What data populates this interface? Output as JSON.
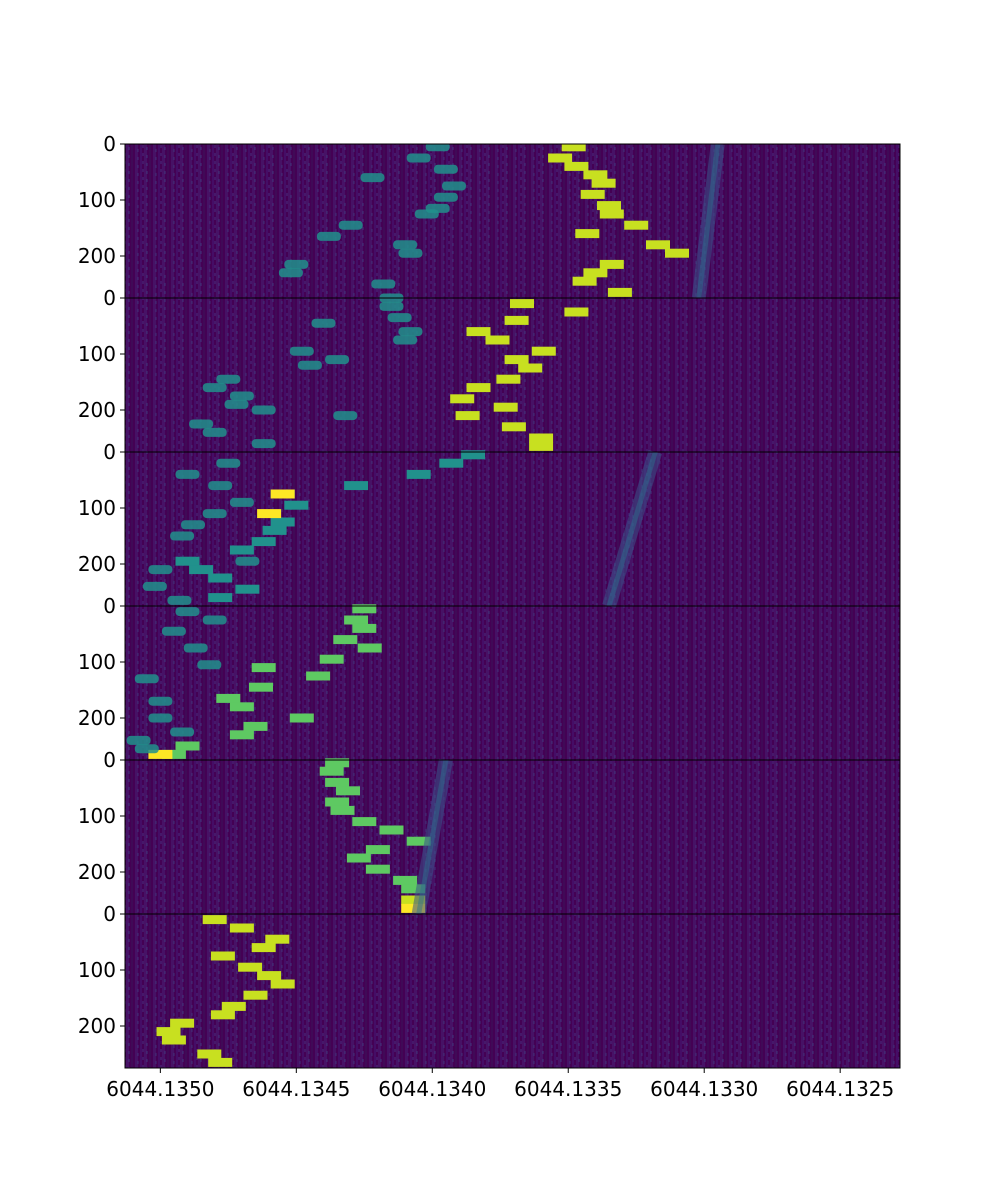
{
  "chart_data": {
    "type": "heatmap",
    "title": "",
    "xlabel": "",
    "ylabel": "",
    "x_axis": {
      "ticks": [
        6044.135,
        6044.1345,
        6044.134,
        6044.1335,
        6044.133,
        6044.1325
      ],
      "tick_labels": [
        "6044.1350",
        "6044.1345",
        "6044.1340",
        "6044.1335",
        "6044.1330",
        "6044.1325"
      ],
      "xlim": [
        6044.13513,
        6044.13228
      ],
      "inverted": true
    },
    "y_axis": {
      "ticks": [
        0,
        100,
        200
      ],
      "tick_labels": [
        "0",
        "100",
        "200"
      ],
      "ylim": [
        0,
        275
      ],
      "inverted": true
    },
    "colormap": "viridis",
    "colors": {
      "background": "#440154",
      "low": "#46327e",
      "mid": "#21918c",
      "high": "#5ec962",
      "peak": "#c8e020",
      "max": "#fde725"
    },
    "panels": [
      {
        "name": "panel 1",
        "blocks": [
          {
            "x": 6044.13348,
            "y": 5,
            "level": 0.9
          },
          {
            "x": 6044.13353,
            "y": 25,
            "level": 0.9
          },
          {
            "x": 6044.13347,
            "y": 40,
            "level": 0.9
          },
          {
            "x": 6044.1334,
            "y": 55,
            "level": 0.9
          },
          {
            "x": 6044.13337,
            "y": 70,
            "level": 0.9
          },
          {
            "x": 6044.13341,
            "y": 90,
            "level": 0.9
          },
          {
            "x": 6044.13335,
            "y": 110,
            "level": 0.9
          },
          {
            "x": 6044.13334,
            "y": 125,
            "level": 0.9
          },
          {
            "x": 6044.13325,
            "y": 145,
            "level": 0.9
          },
          {
            "x": 6044.13343,
            "y": 160,
            "level": 0.9
          },
          {
            "x": 6044.13317,
            "y": 180,
            "level": 0.9
          },
          {
            "x": 6044.1331,
            "y": 195,
            "level": 0.9
          },
          {
            "x": 6044.13334,
            "y": 215,
            "level": 0.9
          },
          {
            "x": 6044.1334,
            "y": 230,
            "level": 0.9
          },
          {
            "x": 6044.13344,
            "y": 245,
            "level": 0.9
          },
          {
            "x": 6044.13331,
            "y": 265,
            "level": 0.9
          },
          {
            "x": 6044.13398,
            "y": 5,
            "level": 0.55
          },
          {
            "x": 6044.13405,
            "y": 25,
            "level": 0.55
          },
          {
            "x": 6044.13395,
            "y": 45,
            "level": 0.55
          },
          {
            "x": 6044.13422,
            "y": 60,
            "level": 0.55
          },
          {
            "x": 6044.13392,
            "y": 75,
            "level": 0.55
          },
          {
            "x": 6044.13395,
            "y": 95,
            "level": 0.55
          },
          {
            "x": 6044.13398,
            "y": 115,
            "level": 0.55
          },
          {
            "x": 6044.13402,
            "y": 125,
            "level": 0.55
          },
          {
            "x": 6044.1343,
            "y": 145,
            "level": 0.55
          },
          {
            "x": 6044.13438,
            "y": 165,
            "level": 0.55
          },
          {
            "x": 6044.1341,
            "y": 180,
            "level": 0.55
          },
          {
            "x": 6044.13408,
            "y": 195,
            "level": 0.55
          },
          {
            "x": 6044.1345,
            "y": 215,
            "level": 0.55
          },
          {
            "x": 6044.13452,
            "y": 230,
            "level": 0.55
          },
          {
            "x": 6044.13418,
            "y": 250,
            "level": 0.55
          }
        ]
      },
      {
        "name": "panel 2",
        "blocks": [
          {
            "x": 6044.13367,
            "y": 10,
            "level": 0.9
          },
          {
            "x": 6044.13347,
            "y": 25,
            "level": 0.9
          },
          {
            "x": 6044.13369,
            "y": 40,
            "level": 0.9
          },
          {
            "x": 6044.13383,
            "y": 60,
            "level": 0.9
          },
          {
            "x": 6044.13376,
            "y": 75,
            "level": 0.9
          },
          {
            "x": 6044.13359,
            "y": 95,
            "level": 0.9
          },
          {
            "x": 6044.13369,
            "y": 110,
            "level": 0.9
          },
          {
            "x": 6044.13364,
            "y": 125,
            "level": 0.9
          },
          {
            "x": 6044.13372,
            "y": 145,
            "level": 0.9
          },
          {
            "x": 6044.13383,
            "y": 160,
            "level": 0.9
          },
          {
            "x": 6044.13389,
            "y": 180,
            "level": 0.9
          },
          {
            "x": 6044.13373,
            "y": 195,
            "level": 0.9
          },
          {
            "x": 6044.13387,
            "y": 210,
            "level": 0.9
          },
          {
            "x": 6044.1337,
            "y": 230,
            "level": 0.9
          },
          {
            "x": 6044.1336,
            "y": 250,
            "level": 0.95
          },
          {
            "x": 6044.1336,
            "y": 265,
            "level": 0.95
          },
          {
            "x": 6044.13415,
            "y": 0,
            "level": 0.55
          },
          {
            "x": 6044.13415,
            "y": 15,
            "level": 0.55
          },
          {
            "x": 6044.13412,
            "y": 35,
            "level": 0.55
          },
          {
            "x": 6044.1344,
            "y": 45,
            "level": 0.55
          },
          {
            "x": 6044.13408,
            "y": 60,
            "level": 0.55
          },
          {
            "x": 6044.1341,
            "y": 75,
            "level": 0.55
          },
          {
            "x": 6044.13448,
            "y": 95,
            "level": 0.55
          },
          {
            "x": 6044.13435,
            "y": 110,
            "level": 0.55
          },
          {
            "x": 6044.13445,
            "y": 120,
            "level": 0.55
          },
          {
            "x": 6044.13475,
            "y": 145,
            "level": 0.55
          },
          {
            "x": 6044.1348,
            "y": 160,
            "level": 0.55
          },
          {
            "x": 6044.1347,
            "y": 175,
            "level": 0.55
          },
          {
            "x": 6044.13472,
            "y": 190,
            "level": 0.55
          },
          {
            "x": 6044.13462,
            "y": 200,
            "level": 0.55
          },
          {
            "x": 6044.13432,
            "y": 210,
            "level": 0.55
          },
          {
            "x": 6044.13485,
            "y": 225,
            "level": 0.55
          },
          {
            "x": 6044.1348,
            "y": 240,
            "level": 0.55
          },
          {
            "x": 6044.13462,
            "y": 260,
            "level": 0.55
          }
        ]
      },
      {
        "name": "panel 3",
        "blocks": [
          {
            "x": 6044.13385,
            "y": 5,
            "level": 0.65
          },
          {
            "x": 6044.13393,
            "y": 20,
            "level": 0.65
          },
          {
            "x": 6044.13405,
            "y": 40,
            "level": 0.65
          },
          {
            "x": 6044.13428,
            "y": 60,
            "level": 0.65
          },
          {
            "x": 6044.13455,
            "y": 75,
            "level": 0.65
          },
          {
            "x": 6044.1345,
            "y": 95,
            "level": 0.65
          },
          {
            "x": 6044.13455,
            "y": 125,
            "level": 0.65
          },
          {
            "x": 6044.13458,
            "y": 140,
            "level": 0.65
          },
          {
            "x": 6044.13462,
            "y": 160,
            "level": 0.65
          },
          {
            "x": 6044.1347,
            "y": 175,
            "level": 0.65
          },
          {
            "x": 6044.1349,
            "y": 195,
            "level": 0.65
          },
          {
            "x": 6044.13485,
            "y": 210,
            "level": 0.65
          },
          {
            "x": 6044.13478,
            "y": 225,
            "level": 0.65
          },
          {
            "x": 6044.13468,
            "y": 245,
            "level": 0.65
          },
          {
            "x": 6044.13478,
            "y": 260,
            "level": 0.65
          },
          {
            "x": 6044.13455,
            "y": 75,
            "level": 1.0
          },
          {
            "x": 6044.1346,
            "y": 110,
            "level": 1.0
          },
          {
            "x": 6044.13475,
            "y": 20,
            "level": 0.5
          },
          {
            "x": 6044.1349,
            "y": 40,
            "level": 0.5
          },
          {
            "x": 6044.13478,
            "y": 60,
            "level": 0.5
          },
          {
            "x": 6044.1347,
            "y": 90,
            "level": 0.5
          },
          {
            "x": 6044.1348,
            "y": 110,
            "level": 0.5
          },
          {
            "x": 6044.13488,
            "y": 130,
            "level": 0.5
          },
          {
            "x": 6044.13492,
            "y": 150,
            "level": 0.5
          },
          {
            "x": 6044.13468,
            "y": 195,
            "level": 0.5
          },
          {
            "x": 6044.135,
            "y": 210,
            "level": 0.5
          },
          {
            "x": 6044.13502,
            "y": 240,
            "level": 0.5
          },
          {
            "x": 6044.13493,
            "y": 265,
            "level": 0.5
          }
        ]
      },
      {
        "name": "panel 4",
        "blocks": [
          {
            "x": 6044.13425,
            "y": 5,
            "level": 0.7
          },
          {
            "x": 6044.13428,
            "y": 25,
            "level": 0.7
          },
          {
            "x": 6044.13425,
            "y": 40,
            "level": 0.7
          },
          {
            "x": 6044.13432,
            "y": 60,
            "level": 0.7
          },
          {
            "x": 6044.13423,
            "y": 75,
            "level": 0.7
          },
          {
            "x": 6044.13437,
            "y": 95,
            "level": 0.7
          },
          {
            "x": 6044.13462,
            "y": 110,
            "level": 0.7
          },
          {
            "x": 6044.13442,
            "y": 125,
            "level": 0.7
          },
          {
            "x": 6044.13463,
            "y": 145,
            "level": 0.7
          },
          {
            "x": 6044.13475,
            "y": 165,
            "level": 0.7
          },
          {
            "x": 6044.1347,
            "y": 180,
            "level": 0.7
          },
          {
            "x": 6044.13448,
            "y": 200,
            "level": 0.7
          },
          {
            "x": 6044.13465,
            "y": 215,
            "level": 0.7
          },
          {
            "x": 6044.1347,
            "y": 230,
            "level": 0.7
          },
          {
            "x": 6044.1349,
            "y": 250,
            "level": 0.7
          },
          {
            "x": 6044.13495,
            "y": 265,
            "level": 0.7
          },
          {
            "x": 6044.135,
            "y": 265,
            "level": 1.0
          },
          {
            "x": 6044.1349,
            "y": 10,
            "level": 0.5
          },
          {
            "x": 6044.1348,
            "y": 25,
            "level": 0.5
          },
          {
            "x": 6044.13495,
            "y": 45,
            "level": 0.5
          },
          {
            "x": 6044.13487,
            "y": 75,
            "level": 0.5
          },
          {
            "x": 6044.13482,
            "y": 105,
            "level": 0.5
          },
          {
            "x": 6044.13505,
            "y": 130,
            "level": 0.5
          },
          {
            "x": 6044.135,
            "y": 170,
            "level": 0.5
          },
          {
            "x": 6044.135,
            "y": 200,
            "level": 0.5
          },
          {
            "x": 6044.13492,
            "y": 225,
            "level": 0.5
          },
          {
            "x": 6044.13508,
            "y": 240,
            "level": 0.5
          },
          {
            "x": 6044.13505,
            "y": 255,
            "level": 0.5
          }
        ]
      },
      {
        "name": "panel 5",
        "blocks": [
          {
            "x": 6044.13435,
            "y": 5,
            "level": 0.7
          },
          {
            "x": 6044.13437,
            "y": 20,
            "level": 0.7
          },
          {
            "x": 6044.13435,
            "y": 40,
            "level": 0.7
          },
          {
            "x": 6044.13431,
            "y": 55,
            "level": 0.7
          },
          {
            "x": 6044.13435,
            "y": 75,
            "level": 0.7
          },
          {
            "x": 6044.13433,
            "y": 90,
            "level": 0.7
          },
          {
            "x": 6044.13425,
            "y": 110,
            "level": 0.7
          },
          {
            "x": 6044.13415,
            "y": 125,
            "level": 0.7
          },
          {
            "x": 6044.13405,
            "y": 145,
            "level": 0.7
          },
          {
            "x": 6044.1342,
            "y": 160,
            "level": 0.7
          },
          {
            "x": 6044.13427,
            "y": 175,
            "level": 0.7
          },
          {
            "x": 6044.1342,
            "y": 195,
            "level": 0.7
          },
          {
            "x": 6044.1341,
            "y": 215,
            "level": 0.8
          },
          {
            "x": 6044.13407,
            "y": 230,
            "level": 0.8
          },
          {
            "x": 6044.13407,
            "y": 250,
            "level": 0.9
          },
          {
            "x": 6044.13407,
            "y": 265,
            "level": 1.0
          }
        ]
      },
      {
        "name": "panel 6",
        "blocks": [
          {
            "x": 6044.1348,
            "y": 10,
            "level": 0.9
          },
          {
            "x": 6044.1347,
            "y": 25,
            "level": 0.9
          },
          {
            "x": 6044.13457,
            "y": 45,
            "level": 0.9
          },
          {
            "x": 6044.13462,
            "y": 60,
            "level": 0.9
          },
          {
            "x": 6044.13477,
            "y": 75,
            "level": 0.9
          },
          {
            "x": 6044.13467,
            "y": 95,
            "level": 0.9
          },
          {
            "x": 6044.1346,
            "y": 110,
            "level": 0.9
          },
          {
            "x": 6044.13455,
            "y": 125,
            "level": 0.9
          },
          {
            "x": 6044.13465,
            "y": 145,
            "level": 0.9
          },
          {
            "x": 6044.13473,
            "y": 165,
            "level": 0.9
          },
          {
            "x": 6044.13477,
            "y": 180,
            "level": 0.9
          },
          {
            "x": 6044.13492,
            "y": 195,
            "level": 0.9
          },
          {
            "x": 6044.13497,
            "y": 210,
            "level": 0.9
          },
          {
            "x": 6044.13495,
            "y": 225,
            "level": 0.9
          },
          {
            "x": 6044.13482,
            "y": 250,
            "level": 0.9
          },
          {
            "x": 6044.13478,
            "y": 265,
            "level": 0.9
          }
        ]
      }
    ],
    "faint_streaks": [
      {
        "panel": 1,
        "x_top": 6044.13295,
        "x_bottom": 6044.13302
      },
      {
        "panel": 3,
        "x_top": 6044.13318,
        "x_bottom": 6044.13335
      },
      {
        "panel": 5,
        "x_top": 6044.13395,
        "x_bottom": 6044.13405
      }
    ]
  }
}
